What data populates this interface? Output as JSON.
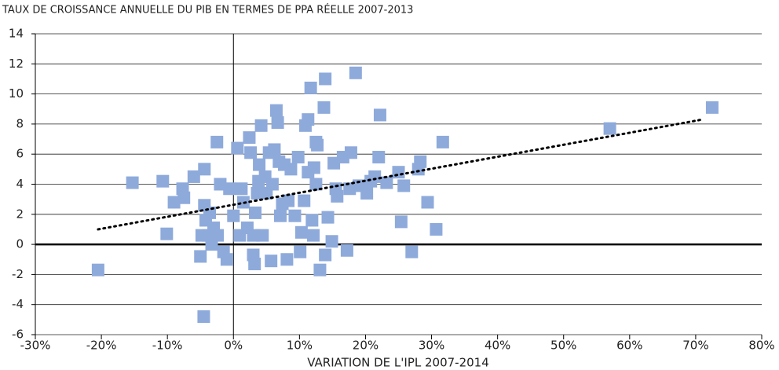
{
  "chart_data": {
    "type": "scatter",
    "title": "TAUX DE CROISSANCE ANNUELLE DU PIB EN TERMES DE PPA RÉELLE 2007-2013",
    "x_label": "VARIATION DE L'IPL 2007-2014",
    "xlim": [
      -30,
      80
    ],
    "xticks": [
      {
        "value": -30,
        "label": "-30%"
      },
      {
        "value": -20,
        "label": "-20%"
      },
      {
        "value": -10,
        "label": "-10%"
      },
      {
        "value": 0,
        "label": "0%"
      },
      {
        "value": 10,
        "label": "10%"
      },
      {
        "value": 20,
        "label": "20%"
      },
      {
        "value": 30,
        "label": "30%"
      },
      {
        "value": 40,
        "label": "40%"
      },
      {
        "value": 50,
        "label": "50%"
      },
      {
        "value": 60,
        "label": "60%"
      },
      {
        "value": 70,
        "label": "70%"
      },
      {
        "value": 80,
        "label": "80%"
      }
    ],
    "ylim": [
      -6,
      14
    ],
    "yticks": [
      -6,
      -4,
      -2,
      0,
      2,
      4,
      6,
      8,
      10,
      12,
      14
    ],
    "grid": true,
    "series": [
      {
        "color": "#8eaadb",
        "x": [
          -20.5,
          -15.3,
          -10.7,
          -10.1,
          -9,
          -7.7,
          -7.5,
          -6,
          -5,
          -4.4,
          -4.5,
          -4.8,
          -4.4,
          -4.2,
          -3.8,
          -3.6,
          -3.3,
          -3,
          -2.5,
          -2.4,
          -2,
          -1.5,
          -1,
          -0.6,
          0,
          0.6,
          0.95,
          1.2,
          1.5,
          2.1,
          2.4,
          2.6,
          3,
          3,
          3.2,
          3.3,
          3.6,
          3.8,
          3.9,
          4.2,
          4.4,
          4.8,
          5,
          5.4,
          5.7,
          5.9,
          6.2,
          6.5,
          6.7,
          6.9,
          7.1,
          7.4,
          7.7,
          8.1,
          8.3,
          8.7,
          9.3,
          9.8,
          10.1,
          10.3,
          10.7,
          10.9,
          11.3,
          11.3,
          11.7,
          11.9,
          12.1,
          12.2,
          12.5,
          12.7,
          12.5,
          13.1,
          13.7,
          13.9,
          13.9,
          14.3,
          14.9,
          15.2,
          15.5,
          15.7,
          16.6,
          17.2,
          17.6,
          17.8,
          18.5,
          19,
          20.2,
          20.8,
          21.4,
          22,
          22.2,
          23.2,
          25,
          25.4,
          25.8,
          27,
          28,
          28.3,
          29.4,
          30.7,
          31.7,
          57,
          72.5
        ],
        "y": [
          -1.7,
          4.1,
          4.2,
          0.7,
          2.8,
          3.7,
          3.1,
          4.5,
          -0.8,
          5,
          -4.8,
          0.6,
          2.6,
          1.6,
          0.6,
          2.1,
          0,
          1.1,
          6.8,
          0.6,
          4,
          -0.5,
          -1,
          3.7,
          1.9,
          6.4,
          0.6,
          3.7,
          2.8,
          1.1,
          7.1,
          6.1,
          0.6,
          -0.7,
          -1.3,
          2.1,
          3.4,
          4.2,
          5.3,
          7.9,
          0.6,
          4.5,
          3.4,
          6.1,
          -1.1,
          4,
          6.3,
          8.9,
          8.1,
          5.5,
          1.9,
          2.7,
          5.3,
          -1,
          2.9,
          5,
          1.9,
          5.8,
          -0.5,
          0.8,
          2.9,
          7.9,
          8.3,
          4.8,
          10.4,
          1.6,
          0.6,
          5.1,
          6.8,
          6.6,
          4,
          -1.7,
          9.1,
          11,
          -0.7,
          1.8,
          0.2,
          5.4,
          3.7,
          3.2,
          5.8,
          -0.4,
          3.7,
          6.1,
          11.4,
          3.9,
          3.4,
          4.2,
          4.5,
          5.8,
          8.6,
          4.1,
          4.8,
          1.5,
          3.9,
          -0.5,
          5,
          5.5,
          2.8,
          1,
          6.8,
          7.7,
          9.1
        ]
      }
    ],
    "trendline": {
      "x": [
        -20.5,
        71
      ],
      "y": [
        1.0,
        8.3
      ]
    }
  }
}
